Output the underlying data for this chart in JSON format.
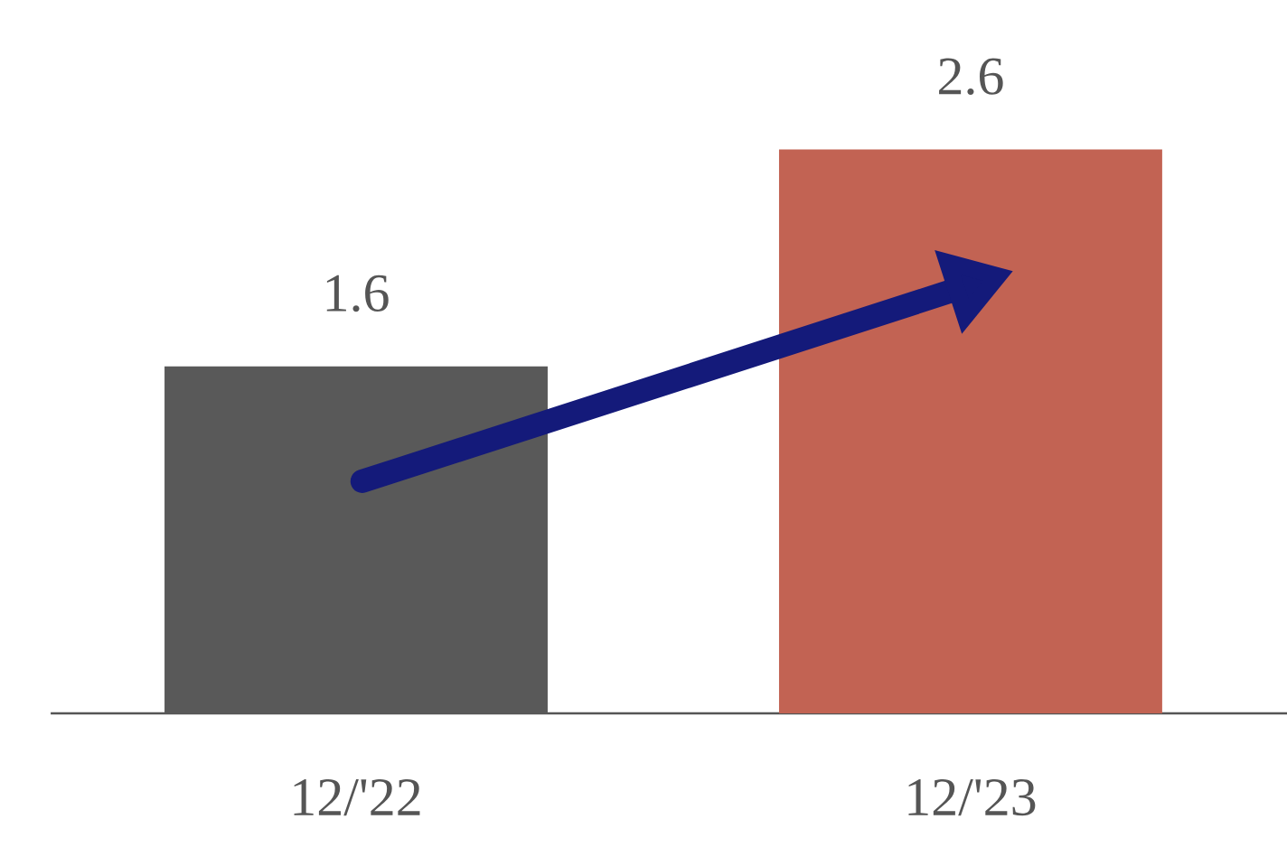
{
  "chart_data": {
    "type": "bar",
    "categories": [
      "12/'22",
      "12/'23"
    ],
    "values": [
      1.6,
      2.6
    ],
    "colors": [
      "#595959",
      "#c26353"
    ],
    "data_labels": true,
    "tick_labels": "x"
  }
}
